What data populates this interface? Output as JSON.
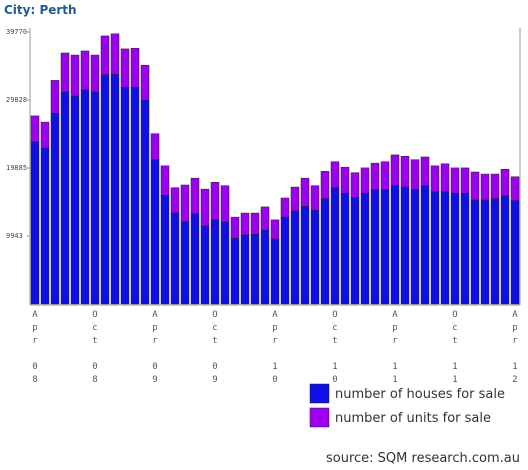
{
  "chart_data": {
    "type": "bar",
    "stacked": true,
    "title": "City: Perth",
    "categories": [
      "Apr 08",
      null,
      null,
      null,
      null,
      null,
      "Oct 08",
      null,
      null,
      null,
      null,
      null,
      "Apr 09",
      null,
      null,
      null,
      null,
      null,
      "Oct 09",
      null,
      null,
      null,
      null,
      null,
      "Apr 10",
      null,
      null,
      null,
      null,
      null,
      "Oct 10",
      null,
      null,
      null,
      null,
      null,
      "Apr 11",
      null,
      null,
      null,
      null,
      null,
      "Oct 11",
      null,
      null,
      null,
      null,
      null,
      "Apr 12"
    ],
    "series": [
      {
        "name": "number of houses for sale",
        "color": "#1010e6",
        "values": [
          23700,
          22800,
          27900,
          31000,
          30400,
          31300,
          31000,
          33500,
          33600,
          31700,
          31700,
          29800,
          21100,
          15900,
          13300,
          12000,
          13200,
          11400,
          12300,
          12000,
          9600,
          10100,
          10200,
          10800,
          9500,
          12700,
          13600,
          14300,
          13700,
          15400,
          17000,
          16200,
          15600,
          16200,
          16700,
          16700,
          17300,
          17100,
          16700,
          17300,
          16400,
          16400,
          16200,
          16200,
          15200,
          15200,
          15400,
          15800,
          15100
        ]
      },
      {
        "name": "number of units for sale",
        "color": "#9b00f0",
        "values": [
          3800,
          3800,
          4800,
          5700,
          6000,
          5700,
          5400,
          5700,
          5900,
          5600,
          5700,
          5100,
          3800,
          4300,
          3700,
          5400,
          5200,
          5400,
          5500,
          5300,
          3100,
          3200,
          3100,
          3400,
          2800,
          2800,
          3500,
          4100,
          3600,
          4000,
          3800,
          3800,
          3600,
          3700,
          3900,
          4100,
          4500,
          4500,
          4400,
          4200,
          3800,
          4100,
          3700,
          3700,
          4100,
          3800,
          3600,
          3900,
          3500
        ]
      }
    ],
    "ylim": [
      0,
      39770
    ],
    "yticks": [
      9943,
      19885,
      29828,
      39770
    ],
    "grid": false,
    "source": "source: SQM research.com.au"
  }
}
